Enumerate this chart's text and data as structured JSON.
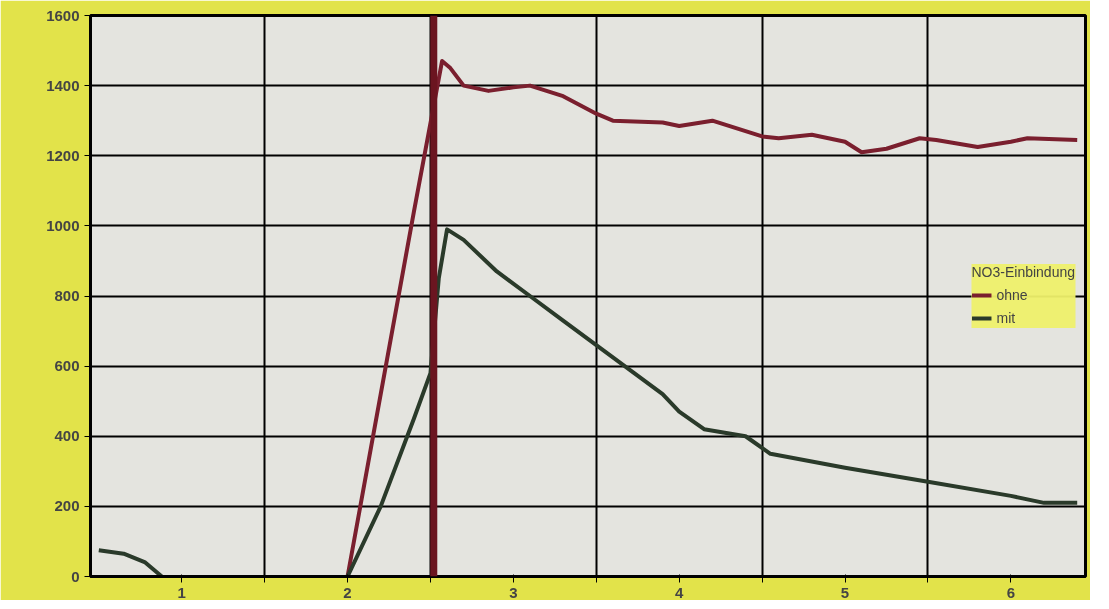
{
  "chart_data": {
    "type": "line",
    "legend_title": "NO3-Einbindung",
    "legend": "right",
    "grid": true,
    "marker": "none",
    "line_style": "solid",
    "xlim": [
      0.45,
      6.45
    ],
    "ylim": [
      0,
      1600
    ],
    "xticks": [
      1,
      2,
      3,
      4,
      5,
      6,
      {
        "value": 1.5,
        "label": null
      },
      {
        "value": 2.5,
        "label": null
      },
      {
        "value": 3.5,
        "label": null
      },
      {
        "value": 4.5,
        "label": null
      },
      {
        "value": 5.5,
        "label": null
      }
    ],
    "yticks": [
      0,
      200,
      400,
      600,
      800,
      1000,
      1200,
      1400,
      1600
    ],
    "ref_lines": [
      {
        "axis": "x",
        "value": 2.52,
        "label": null,
        "color": "#6b1520"
      }
    ],
    "series": [
      {
        "name": "ohne",
        "color": "#7a1f2e",
        "x": [
          2.0,
          2.2,
          2.4,
          2.57,
          2.62,
          2.7,
          2.85,
          3.0,
          3.1,
          3.3,
          3.5,
          3.6,
          3.9,
          4.0,
          4.2,
          4.5,
          4.6,
          4.8,
          5.0,
          5.1,
          5.25,
          5.45,
          5.55,
          5.8,
          6.0,
          6.1,
          6.4
        ],
        "values": [
          0,
          520,
          1040,
          1470,
          1450,
          1400,
          1385,
          1395,
          1400,
          1370,
          1320,
          1300,
          1295,
          1285,
          1300,
          1255,
          1250,
          1260,
          1240,
          1210,
          1220,
          1250,
          1245,
          1225,
          1240,
          1250,
          1245
        ]
      },
      {
        "name": "mit",
        "color": "#2a3a2a",
        "x": [
          0.5,
          0.65,
          0.78,
          0.88,
          1.2,
          2.0,
          2.2,
          2.4,
          2.5,
          2.55,
          2.6,
          2.7,
          2.9,
          3.1,
          3.3,
          3.5,
          3.7,
          3.9,
          4.0,
          4.15,
          4.4,
          4.55,
          5.0,
          5.5,
          6.0,
          6.2,
          6.4
        ],
        "values": [
          75,
          65,
          40,
          0,
          null,
          0,
          200,
          450,
          580,
          850,
          990,
          960,
          870,
          800,
          730,
          660,
          590,
          520,
          470,
          420,
          400,
          350,
          310,
          270,
          230,
          210,
          210
        ]
      }
    ]
  }
}
